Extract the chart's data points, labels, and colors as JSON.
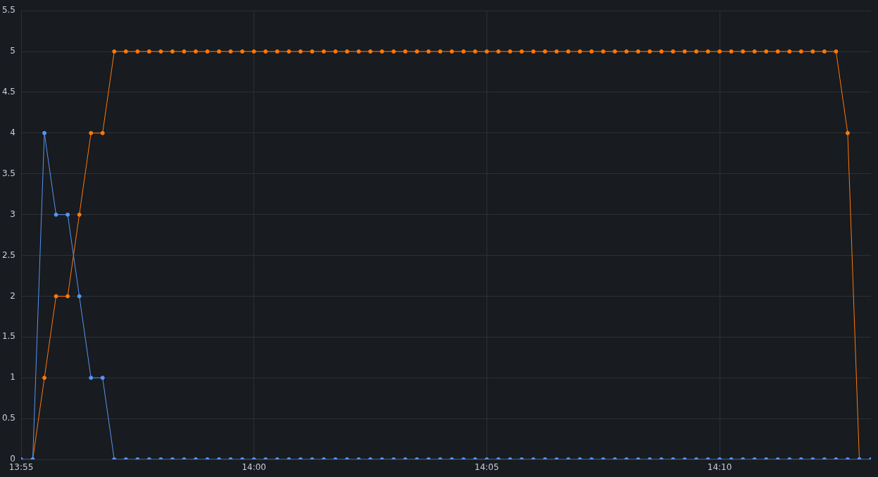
{
  "chart_data": {
    "type": "line",
    "x": [
      13.91667,
      13.92083,
      13.925,
      13.92917,
      13.93333,
      13.9375,
      13.94167,
      13.94583,
      13.95,
      13.95417,
      13.95833,
      13.9625,
      13.96667,
      13.97083,
      13.975,
      13.97917,
      13.98333,
      13.9875,
      13.99167,
      13.99583,
      14,
      14.00417,
      14.00833,
      14.0125,
      14.01667,
      14.02083,
      14.025,
      14.02917,
      14.03333,
      14.0375,
      14.04167,
      14.04583,
      14.05,
      14.05417,
      14.05833,
      14.0625,
      14.06667,
      14.07083,
      14.075,
      14.07917,
      14.08333,
      14.0875,
      14.09167,
      14.09583,
      14.1,
      14.10417,
      14.10833,
      14.1125,
      14.11667,
      14.12083,
      14.125,
      14.12917,
      14.13333,
      14.1375,
      14.14167,
      14.14583,
      14.15,
      14.15417,
      14.15833,
      14.1625,
      14.16667,
      14.17083,
      14.175,
      14.17917,
      14.18333,
      14.1875,
      14.19167,
      14.19583,
      14.2,
      14.20417,
      14.20833,
      14.2125,
      14.21667,
      14.22083
    ],
    "series": [
      {
        "color": "#5794f2",
        "values": [
          0,
          0,
          4,
          3,
          3,
          2,
          1,
          1,
          0,
          0,
          0,
          0,
          0,
          0,
          0,
          0,
          0,
          0,
          0,
          0,
          0,
          0,
          0,
          0,
          0,
          0,
          0,
          0,
          0,
          0,
          0,
          0,
          0,
          0,
          0,
          0,
          0,
          0,
          0,
          0,
          0,
          0,
          0,
          0,
          0,
          0,
          0,
          0,
          0,
          0,
          0,
          0,
          0,
          0,
          0,
          0,
          0,
          0,
          0,
          0,
          0,
          0,
          0,
          0,
          0,
          0,
          0,
          0,
          0,
          0,
          0,
          0,
          0,
          0
        ]
      },
      {
        "color": "#ff780a",
        "values": [
          null,
          0,
          1,
          2,
          2,
          3,
          4,
          4,
          5,
          5,
          5,
          5,
          5,
          5,
          5,
          5,
          5,
          5,
          5,
          5,
          5,
          5,
          5,
          5,
          5,
          5,
          5,
          5,
          5,
          5,
          5,
          5,
          5,
          5,
          5,
          5,
          5,
          5,
          5,
          5,
          5,
          5,
          5,
          5,
          5,
          5,
          5,
          5,
          5,
          5,
          5,
          5,
          5,
          5,
          5,
          5,
          5,
          5,
          5,
          5,
          5,
          5,
          5,
          5,
          5,
          5,
          5,
          5,
          5,
          5,
          5,
          4,
          0,
          null
        ]
      }
    ],
    "xlim": [
      13.91667,
      14.22083
    ],
    "xticks": [
      {
        "value": 13.91667,
        "label": "13:55"
      },
      {
        "value": 14,
        "label": "14:00"
      },
      {
        "value": 14.08333,
        "label": "14:05"
      },
      {
        "value": 14.16667,
        "label": "14:10"
      }
    ],
    "ylim": [
      0,
      5.5
    ],
    "yticks": [
      0,
      0.5,
      1,
      1.5,
      2,
      2.5,
      3,
      3.5,
      4,
      4.5,
      5,
      5.5
    ],
    "grid": true,
    "marker": "circle",
    "line_style": "solid"
  }
}
